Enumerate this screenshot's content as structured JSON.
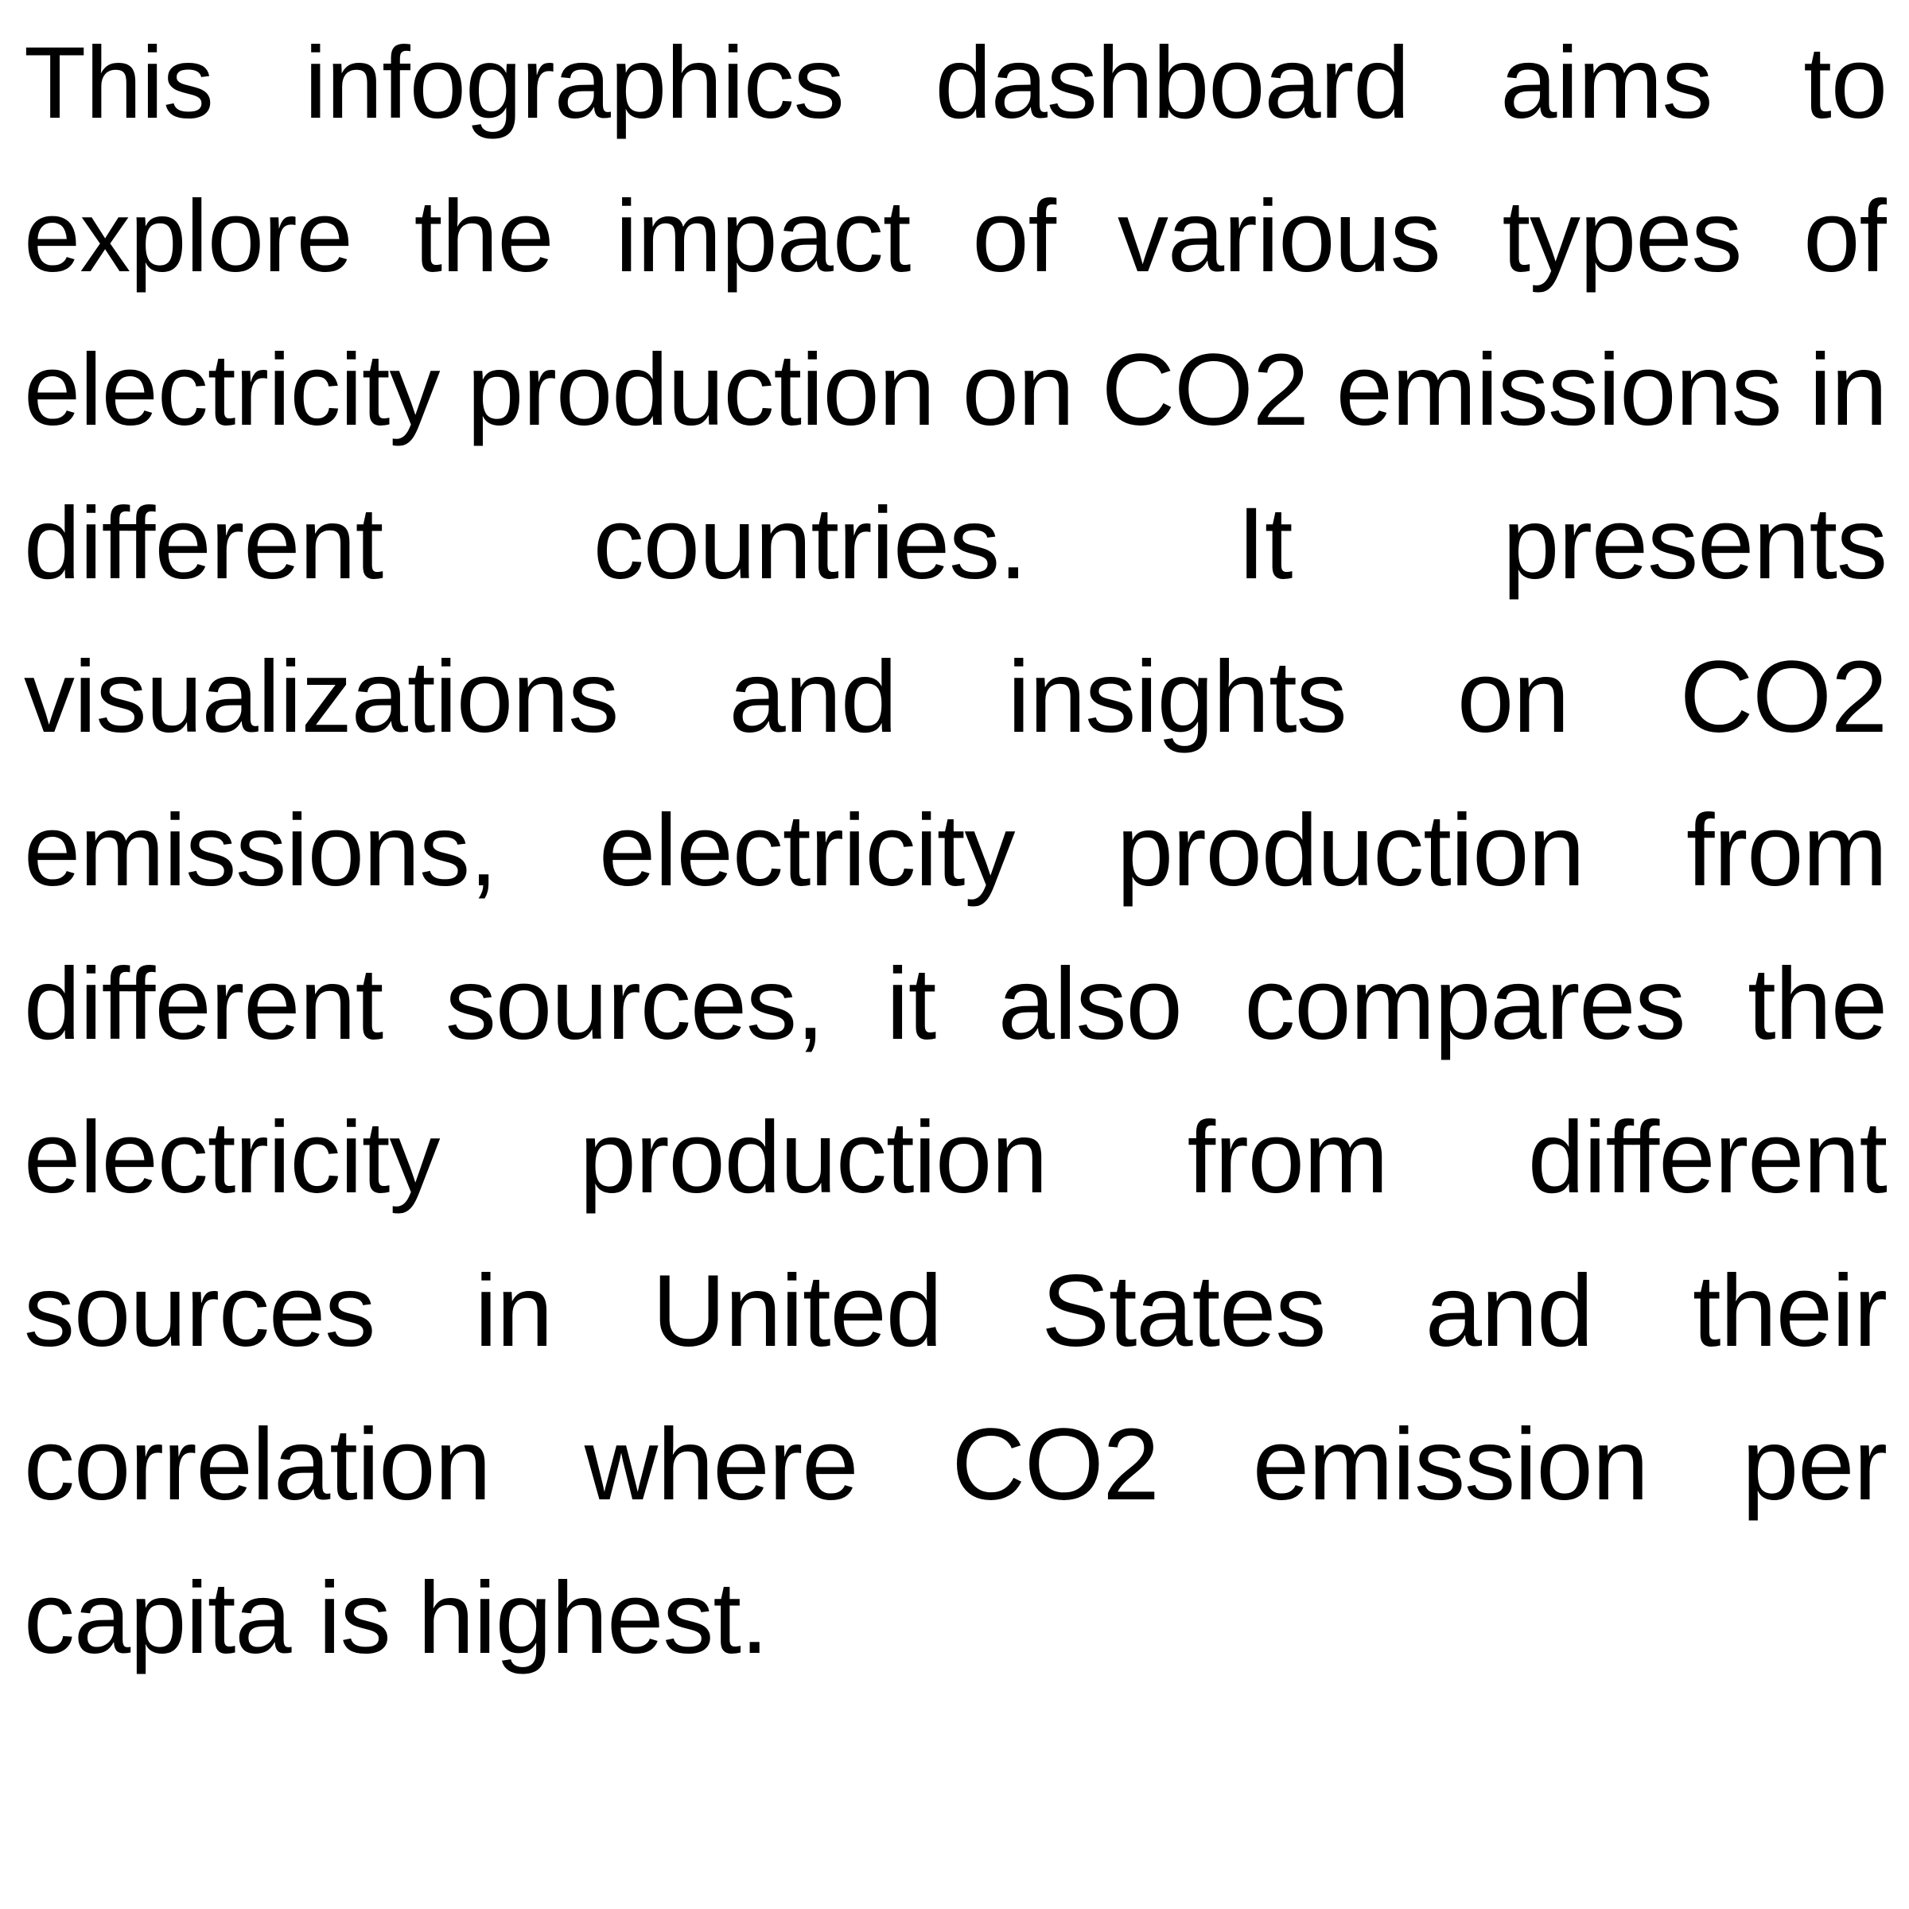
{
  "document": {
    "paragraph": "This infographics dashboard aims to explore the impact of various types of electricity production on CO2 emissions in different countries. It presents visualizations and insights on CO2 emissions, electricity production from different sources, it also compares the electricity production from different sources in United States and their correlation where CO2 emission per capita is highest."
  }
}
